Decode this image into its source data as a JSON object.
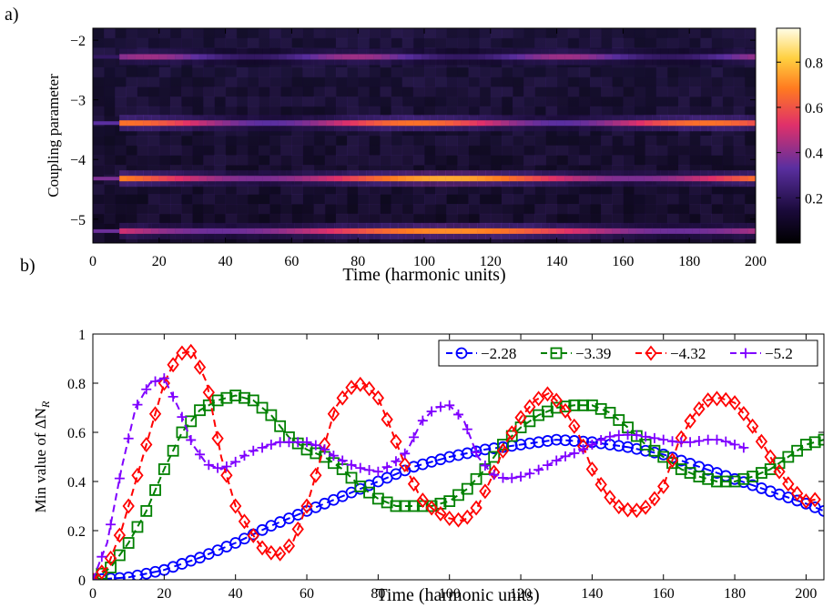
{
  "figure": {
    "panel_a_label": "a)",
    "panel_b_label": "b)"
  },
  "chart_data": [
    {
      "type": "heatmap",
      "panel": "a)",
      "xlabel": "Time (harmonic units)",
      "ylabel": "Coupling parameter",
      "xlim": [
        0,
        200
      ],
      "ylim": [
        -5.4,
        -1.8
      ],
      "xticks": [
        0,
        20,
        40,
        60,
        80,
        100,
        120,
        140,
        160,
        180,
        200
      ],
      "yticks": [
        -2,
        -3,
        -4,
        -5
      ],
      "colorbar": {
        "min": 0,
        "max": 0.95,
        "ticks": [
          0.2,
          0.4,
          0.6,
          0.8
        ],
        "colormap": "black-purple-red-yellow-white"
      },
      "bands": [
        {
          "coupling": -2.28,
          "intensity": 0.45
        },
        {
          "coupling": -3.39,
          "intensity": 0.7
        },
        {
          "coupling": -4.32,
          "intensity": 0.8
        },
        {
          "coupling": -5.2,
          "intensity": 0.75
        }
      ]
    },
    {
      "type": "line",
      "panel": "b)",
      "xlabel": "Time (harmonic units)",
      "ylabel": "Min value of ΔN",
      "ylabel_sub": "R",
      "xlim": [
        0,
        205
      ],
      "ylim": [
        0,
        1
      ],
      "xticks": [
        0,
        20,
        40,
        60,
        80,
        100,
        120,
        140,
        160,
        180,
        200
      ],
      "yticks": [
        0,
        0.2,
        0.4,
        0.6,
        0.8,
        1
      ],
      "ytick_labels": [
        "0",
        "0.2",
        "0.4",
        "0.6",
        "0.8",
        "1"
      ],
      "legend_position": "top-right",
      "series": [
        {
          "name": "−2.28",
          "color": "#0000ff",
          "marker": "circle",
          "x": [
            0,
            10,
            20,
            30,
            40,
            50,
            60,
            70,
            80,
            90,
            100,
            110,
            120,
            130,
            140,
            150,
            160,
            170,
            180,
            190,
            200,
            205
          ],
          "y": [
            0,
            0.01,
            0.04,
            0.09,
            0.15,
            0.22,
            0.28,
            0.34,
            0.4,
            0.46,
            0.5,
            0.53,
            0.55,
            0.57,
            0.56,
            0.54,
            0.51,
            0.46,
            0.41,
            0.36,
            0.31,
            0.28
          ]
        },
        {
          "name": "−3.39",
          "color": "#008000",
          "marker": "square",
          "x": [
            0,
            5,
            10,
            15,
            20,
            25,
            30,
            35,
            40,
            45,
            50,
            55,
            60,
            65,
            70,
            75,
            80,
            85,
            90,
            95,
            100,
            105,
            110,
            115,
            120,
            125,
            130,
            135,
            140,
            145,
            150,
            155,
            160,
            165,
            170,
            175,
            180,
            185,
            190,
            195,
            200,
            205
          ],
          "y": [
            0,
            0.05,
            0.15,
            0.28,
            0.45,
            0.6,
            0.69,
            0.73,
            0.75,
            0.73,
            0.67,
            0.58,
            0.53,
            0.5,
            0.45,
            0.38,
            0.33,
            0.3,
            0.3,
            0.3,
            0.32,
            0.37,
            0.45,
            0.55,
            0.62,
            0.67,
            0.7,
            0.71,
            0.71,
            0.68,
            0.62,
            0.55,
            0.5,
            0.45,
            0.42,
            0.4,
            0.4,
            0.42,
            0.45,
            0.5,
            0.55,
            0.57
          ]
        },
        {
          "name": "−4.32",
          "color": "#ff0000",
          "marker": "diamond",
          "x": [
            0,
            4,
            8,
            12,
            16,
            20,
            24,
            28,
            32,
            36,
            40,
            44,
            48,
            52,
            56,
            60,
            64,
            68,
            72,
            76,
            80,
            84,
            88,
            92,
            96,
            100,
            104,
            108,
            112,
            116,
            120,
            124,
            128,
            132,
            136,
            140,
            144,
            148,
            152,
            156,
            160,
            164,
            168,
            172,
            176,
            180,
            184,
            188,
            192,
            196,
            200,
            204
          ],
          "y": [
            0,
            0.05,
            0.2,
            0.4,
            0.6,
            0.8,
            0.92,
            0.93,
            0.8,
            0.5,
            0.3,
            0.2,
            0.12,
            0.1,
            0.15,
            0.3,
            0.5,
            0.7,
            0.78,
            0.8,
            0.74,
            0.6,
            0.45,
            0.33,
            0.28,
            0.25,
            0.24,
            0.3,
            0.42,
            0.56,
            0.66,
            0.73,
            0.76,
            0.7,
            0.6,
            0.45,
            0.35,
            0.29,
            0.28,
            0.3,
            0.38,
            0.55,
            0.66,
            0.73,
            0.74,
            0.72,
            0.65,
            0.55,
            0.45,
            0.37,
            0.32,
            0.33
          ]
        },
        {
          "name": "−5.2",
          "color": "#7f00ff",
          "marker": "plus",
          "x": [
            0,
            4,
            8,
            12,
            16,
            20,
            24,
            28,
            32,
            36,
            40,
            44,
            48,
            52,
            56,
            60,
            64,
            68,
            72,
            76,
            80,
            84,
            88,
            92,
            96,
            100,
            104,
            108,
            112,
            116,
            120,
            124,
            128,
            132,
            136,
            140,
            144,
            148,
            152,
            156,
            160,
            164,
            168,
            172,
            176,
            180,
            184
          ],
          "y": [
            0,
            0.15,
            0.45,
            0.7,
            0.8,
            0.82,
            0.7,
            0.55,
            0.47,
            0.45,
            0.48,
            0.52,
            0.54,
            0.56,
            0.56,
            0.56,
            0.54,
            0.5,
            0.47,
            0.45,
            0.44,
            0.47,
            0.52,
            0.64,
            0.7,
            0.71,
            0.65,
            0.5,
            0.43,
            0.41,
            0.42,
            0.44,
            0.47,
            0.5,
            0.52,
            0.55,
            0.58,
            0.59,
            0.59,
            0.58,
            0.57,
            0.56,
            0.56,
            0.57,
            0.57,
            0.55,
            0.53
          ]
        }
      ]
    }
  ]
}
